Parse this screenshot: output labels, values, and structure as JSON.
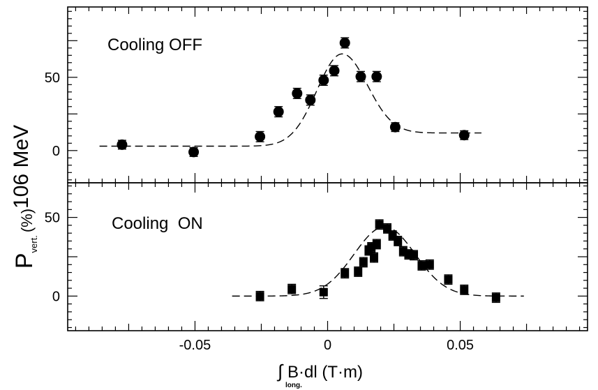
{
  "chart_data": [
    {
      "type": "scatter",
      "panel_label": "Cooling OFF",
      "marker": "circle",
      "xlim": [
        -0.098,
        0.098
      ],
      "ylim": [
        -22,
        98
      ],
      "y_ticks": [
        0,
        50
      ],
      "y_minor_step": 5,
      "y_major_ticks": [
        -25,
        0,
        25,
        50,
        75
      ],
      "points": [
        {
          "x": -0.0775,
          "y": 4.0,
          "err": 3
        },
        {
          "x": -0.0505,
          "y": -1.0,
          "err": 3
        },
        {
          "x": -0.0255,
          "y": 9.5,
          "err": 3.5
        },
        {
          "x": -0.0185,
          "y": 26.5,
          "err": 3.5
        },
        {
          "x": -0.0115,
          "y": 39.0,
          "err": 3.5
        },
        {
          "x": -0.0065,
          "y": 34.5,
          "err": 3.5
        },
        {
          "x": -0.0015,
          "y": 48.0,
          "err": 3.5
        },
        {
          "x": 0.0025,
          "y": 54.5,
          "err": 3.5
        },
        {
          "x": 0.0065,
          "y": 73.5,
          "err": 3.5
        },
        {
          "x": 0.0125,
          "y": 50.5,
          "err": 3.5
        },
        {
          "x": 0.0185,
          "y": 50.5,
          "err": 3.5
        },
        {
          "x": 0.0255,
          "y": 16.0,
          "err": 3
        },
        {
          "x": 0.0515,
          "y": 10.5,
          "err": 3
        }
      ],
      "fit_curve": {
        "x_range": [
          -0.086,
          0.058
        ],
        "baseline": 3,
        "baseline_right": 12,
        "peak": 66,
        "center": 0.0055,
        "width": 0.0095
      }
    },
    {
      "type": "scatter",
      "panel_label": "Cooling  ON",
      "marker": "square",
      "xlim": [
        -0.098,
        0.098
      ],
      "ylim": [
        -22,
        72
      ],
      "y_ticks": [
        0,
        50
      ],
      "y_minor_step": 5,
      "y_major_ticks": [
        -25,
        0,
        25,
        50
      ],
      "points": [
        {
          "x": -0.0255,
          "y": 0.0,
          "err": 3
        },
        {
          "x": -0.0135,
          "y": 4.5,
          "err": 3
        },
        {
          "x": -0.0015,
          "y": 2.5,
          "err": 4
        },
        {
          "x": 0.0065,
          "y": 14.5,
          "err": 3
        },
        {
          "x": 0.0115,
          "y": 15.5,
          "err": 3
        },
        {
          "x": 0.0135,
          "y": 21.5,
          "err": 3
        },
        {
          "x": 0.0155,
          "y": 29.0,
          "err": 3
        },
        {
          "x": 0.0165,
          "y": 31.0,
          "err": 3
        },
        {
          "x": 0.0175,
          "y": 24.5,
          "err": 3
        },
        {
          "x": 0.0185,
          "y": 33.0,
          "err": 3
        },
        {
          "x": 0.0195,
          "y": 45.5,
          "err": 3
        },
        {
          "x": 0.0225,
          "y": 43.0,
          "err": 3
        },
        {
          "x": 0.0245,
          "y": 38.5,
          "err": 3
        },
        {
          "x": 0.0265,
          "y": 35.0,
          "err": 3
        },
        {
          "x": 0.0285,
          "y": 28.5,
          "err": 3
        },
        {
          "x": 0.0305,
          "y": 26.5,
          "err": 3
        },
        {
          "x": 0.0325,
          "y": 26.0,
          "err": 3
        },
        {
          "x": 0.0355,
          "y": 19.5,
          "err": 3
        },
        {
          "x": 0.0385,
          "y": 20.0,
          "err": 3
        },
        {
          "x": 0.0455,
          "y": 10.5,
          "err": 3
        },
        {
          "x": 0.0515,
          "y": 4.0,
          "err": 3
        },
        {
          "x": 0.0635,
          "y": -1.0,
          "err": 3
        }
      ],
      "fit_curve": {
        "x_range": [
          -0.036,
          0.074
        ],
        "baseline": 0,
        "baseline_right": 0,
        "peak": 44,
        "center": 0.0215,
        "width": 0.0115
      }
    }
  ],
  "x_ticks": [
    {
      "value": -0.05,
      "label": "-0.05"
    },
    {
      "value": 0,
      "label": "0"
    },
    {
      "value": 0.05,
      "label": "0.05"
    }
  ],
  "x_minor_step": 0.005,
  "y_tick_labels": {
    "0": "0",
    "50": "50"
  },
  "y_axis_label": {
    "main": "P",
    "subscript": "vert.",
    "middle": "(%)",
    "energy": "106 MeV"
  },
  "x_axis_label": {
    "integral": "∫",
    "body": "B·dl (T·m)",
    "subscript": "long."
  }
}
